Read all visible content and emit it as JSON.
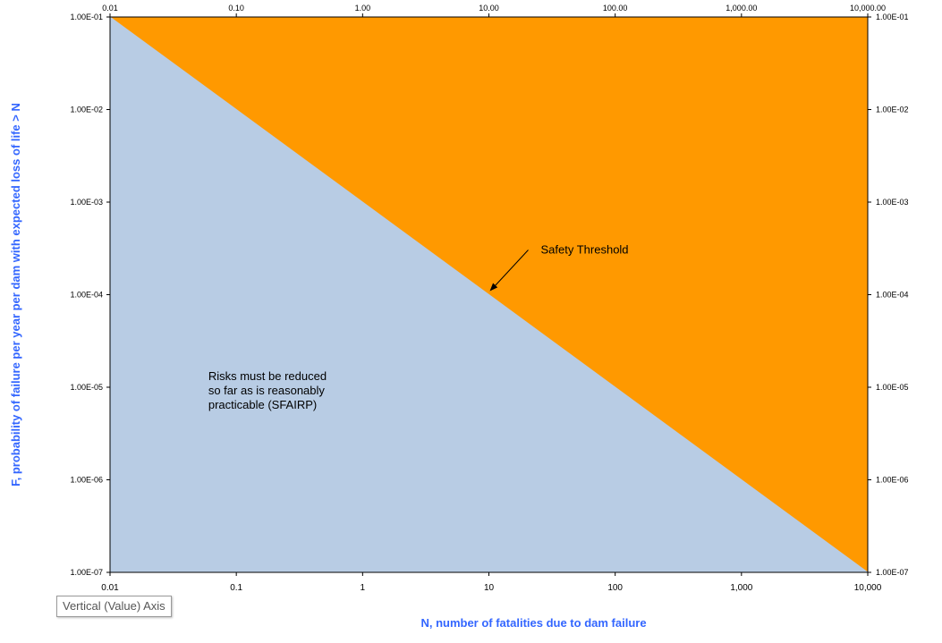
{
  "colors": {
    "accepted_region": "#b8cce4",
    "intolerable_region": "#ff9900",
    "axis_title": "#3366ff",
    "frame": "#000000"
  },
  "chart_data": {
    "type": "area",
    "x_scale": "log",
    "y_scale": "log",
    "xlim": [
      0.01,
      10000
    ],
    "ylim": [
      1e-07,
      0.1
    ],
    "xlabel": "N, number of fatalities due to dam failure",
    "ylabel": "F, probability of failure per year per dam with expected loss of life > N",
    "x_ticks_bottom": [
      "0.01",
      "0.1",
      "1",
      "10",
      "100",
      "1,000",
      "10,000"
    ],
    "x_ticks_top": [
      "0.01",
      "0.10",
      "1.00",
      "10.00",
      "100.00",
      "1,000.00",
      "10,000.00"
    ],
    "y_ticks_left": [
      "1.00E-01",
      "1.00E-02",
      "1.00E-03",
      "1.00E-04",
      "1.00E-05",
      "1.00E-06",
      "1.00E-07"
    ],
    "y_ticks_right": [
      "1.00E-01",
      "1.00E-02",
      "1.00E-03",
      "1.00E-04",
      "1.00E-05",
      "1.00E-06",
      "1.00E-07"
    ],
    "threshold_line": {
      "x": [
        0.01,
        10000
      ],
      "y": [
        0.1,
        1e-07
      ]
    },
    "annotations": [
      {
        "text": "Safety Threshold",
        "x": 10,
        "y": 0.0001
      },
      {
        "lines": [
          "Risks must be reduced",
          "so far as is reasonably",
          "practicable (SFAIRP)"
        ],
        "x": 0.06,
        "y": 1e-05
      }
    ]
  },
  "tooltip": {
    "text": "Vertical (Value) Axis"
  }
}
